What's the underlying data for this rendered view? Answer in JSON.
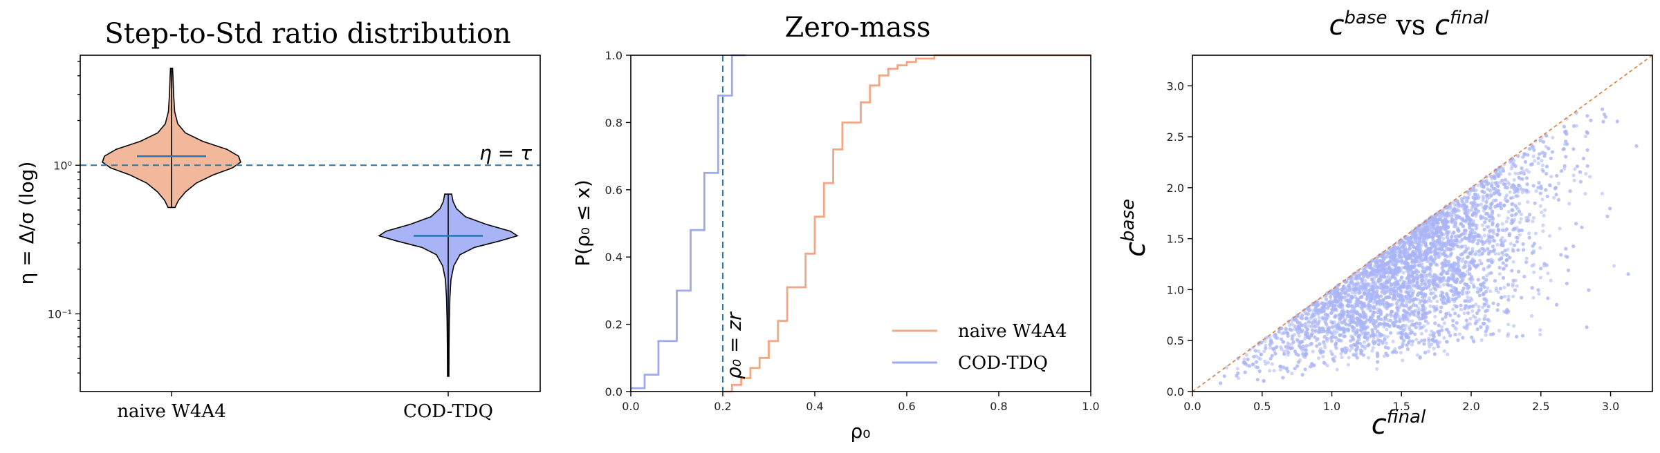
{
  "colors": {
    "orange": "#f2b89c",
    "orange_line": "#f4a582",
    "blue": "#a9b4f6",
    "blue_line": "#9fa9f1",
    "ref_blue": "#1f77b4",
    "ref_orange": "#e07b39"
  },
  "chart_data": [
    {
      "type": "violin",
      "title": "Step-to-Std ratio distribution",
      "ylabel": "η = Δ/σ (log)",
      "yscale": "log",
      "ylim": [
        0.03,
        5.5
      ],
      "ytick_labels": [
        "10⁻¹",
        "10⁰"
      ],
      "ytick_values": [
        0.1,
        1.0
      ],
      "categories": [
        "naive W4A4",
        "COD-TDQ"
      ],
      "threshold": {
        "value": 1.0,
        "label": "η = τ"
      },
      "violins": [
        {
          "name": "naive W4A4",
          "median": 1.15,
          "min": 0.52,
          "max": 4.5,
          "color": "#f2b89c",
          "profile": [
            [
              0.52,
              0.05
            ],
            [
              0.58,
              0.1
            ],
            [
              0.66,
              0.2
            ],
            [
              0.76,
              0.36
            ],
            [
              0.86,
              0.6
            ],
            [
              0.96,
              0.88
            ],
            [
              1.05,
              1.0
            ],
            [
              1.15,
              0.97
            ],
            [
              1.28,
              0.8
            ],
            [
              1.45,
              0.45
            ],
            [
              1.65,
              0.2
            ],
            [
              1.9,
              0.09
            ],
            [
              2.3,
              0.045
            ],
            [
              3.0,
              0.03
            ],
            [
              4.0,
              0.02
            ],
            [
              4.5,
              0.015
            ]
          ]
        },
        {
          "name": "COD-TDQ",
          "median": 0.335,
          "min": 0.038,
          "max": 0.64,
          "color": "#a9b4f6",
          "profile": [
            [
              0.038,
              0.01
            ],
            [
              0.06,
              0.012
            ],
            [
              0.09,
              0.016
            ],
            [
              0.13,
              0.025
            ],
            [
              0.17,
              0.04
            ],
            [
              0.21,
              0.08
            ],
            [
              0.25,
              0.17
            ],
            [
              0.28,
              0.38
            ],
            [
              0.31,
              0.75
            ],
            [
              0.335,
              1.0
            ],
            [
              0.36,
              0.9
            ],
            [
              0.4,
              0.55
            ],
            [
              0.45,
              0.25
            ],
            [
              0.51,
              0.12
            ],
            [
              0.57,
              0.07
            ],
            [
              0.64,
              0.05
            ]
          ]
        }
      ]
    },
    {
      "type": "line",
      "title": "Zero-mass",
      "xlabel": "ρ₀",
      "ylabel": "P(ρ₀ ≤ x)",
      "xlim": [
        0.0,
        1.0
      ],
      "ylim": [
        0.0,
        1.0
      ],
      "xtick_labels": [
        "0.0",
        "0.2",
        "0.4",
        "0.6",
        "0.8",
        "1.0"
      ],
      "ytick_labels": [
        "0.0",
        "0.2",
        "0.4",
        "0.6",
        "0.8",
        "1.0"
      ],
      "threshold": {
        "value": 0.2,
        "label": "ρ₀ = zr"
      },
      "legend_position": "lower-right",
      "series": [
        {
          "name": "naive W4A4",
          "color": "#f4a582",
          "x": [
            0.2,
            0.22,
            0.24,
            0.26,
            0.28,
            0.3,
            0.32,
            0.34,
            0.36,
            0.38,
            0.4,
            0.42,
            0.44,
            0.46,
            0.48,
            0.5,
            0.52,
            0.54,
            0.56,
            0.58,
            0.6,
            0.62,
            0.64,
            0.66,
            0.68,
            0.7,
            0.72,
            1.0
          ],
          "y": [
            0.0,
            0.02,
            0.04,
            0.07,
            0.1,
            0.15,
            0.21,
            0.31,
            0.31,
            0.41,
            0.52,
            0.62,
            0.72,
            0.8,
            0.8,
            0.86,
            0.91,
            0.94,
            0.96,
            0.97,
            0.98,
            0.99,
            0.99,
            1.0,
            1.0,
            1.0,
            1.0,
            1.0
          ]
        },
        {
          "name": "COD-TDQ",
          "color": "#9fa9f1",
          "x": [
            0.0,
            0.03,
            0.06,
            0.1,
            0.13,
            0.16,
            0.19,
            0.22,
            0.25
          ],
          "y": [
            0.01,
            0.05,
            0.15,
            0.3,
            0.48,
            0.65,
            0.88,
            1.0,
            1.0
          ]
        }
      ]
    },
    {
      "type": "scatter",
      "title": "c^base vs c^final",
      "xlabel": "c^final",
      "ylabel": "c^base",
      "xlim": [
        0.0,
        3.3
      ],
      "ylim": [
        0.0,
        3.3
      ],
      "xtick_labels": [
        "0.0",
        "0.5",
        "1.0",
        "1.5",
        "2.0",
        "2.5",
        "3.0"
      ],
      "ytick_labels": [
        "0.0",
        "0.5",
        "1.0",
        "1.5",
        "2.0",
        "2.5",
        "3.0"
      ],
      "reference_line": "y = x",
      "point_color": "#a9b4f6",
      "point_count": 5000
    }
  ]
}
